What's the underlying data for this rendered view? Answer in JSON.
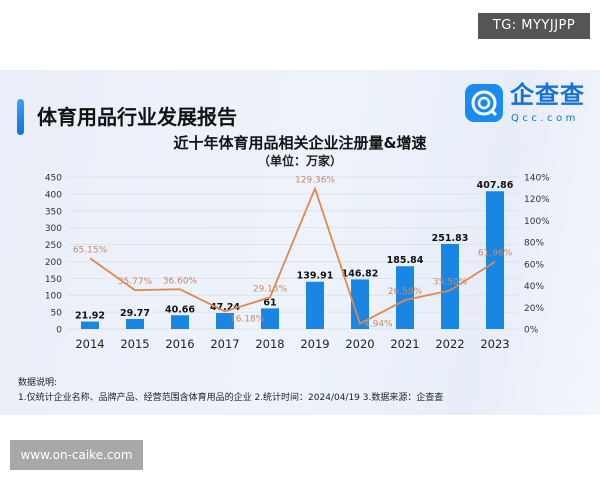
{
  "badge": "TG: MYYJJPP",
  "report_title": "体育用品行业发展报告",
  "logo": {
    "cn": "企查查",
    "en": "Qcc.com"
  },
  "notes": {
    "heading": "数据说明:",
    "text": "1.仅统计企业名称、品牌产品、经营范围含体育用品的企业  2.统计时间：2024/04/19   3.数据来源：企查查"
  },
  "watermark": "www.on-caike.com",
  "colors": {
    "bar": "#1a86e3",
    "line": "#e0894a",
    "line_label": "#c88a6a"
  },
  "chart_data": {
    "type": "bar+line",
    "title": "近十年体育用品相关企业注册量&增速",
    "subtitle": "（单位：万家）",
    "categories": [
      "2014",
      "2015",
      "2016",
      "2017",
      "2018",
      "2019",
      "2020",
      "2021",
      "2022",
      "2023"
    ],
    "series": [
      {
        "type": "bar",
        "axis": "left",
        "values": [
          21.92,
          29.77,
          40.66,
          47.24,
          61,
          139.91,
          146.82,
          185.84,
          251.83,
          407.86
        ],
        "labels": [
          "21.92",
          "29.77",
          "40.66",
          "47.24",
          "61",
          "139.91",
          "146.82",
          "185.84",
          "251.83",
          "407.86"
        ]
      },
      {
        "type": "line",
        "axis": "right",
        "values": [
          65.15,
          35.77,
          36.6,
          16.18,
          29.13,
          129.36,
          4.94,
          26.58,
          35.5,
          61.96
        ],
        "labels": [
          "65.15%",
          "35.77%",
          "36.60%",
          "16.18%",
          "29.13%",
          "129.36%",
          "4.94%",
          "26.58%",
          "35.50%",
          "61.96%"
        ]
      }
    ],
    "left_axis": {
      "ylim": [
        0,
        450
      ],
      "ticks": [
        "0",
        "50",
        "100",
        "150",
        "200",
        "250",
        "300",
        "350",
        "400",
        "450"
      ]
    },
    "right_axis": {
      "ylim": [
        0,
        140
      ],
      "ticks": [
        "0%",
        "20%",
        "40%",
        "60%",
        "80%",
        "100%",
        "120%",
        "140%"
      ]
    },
    "grid": true,
    "legend": "none"
  }
}
